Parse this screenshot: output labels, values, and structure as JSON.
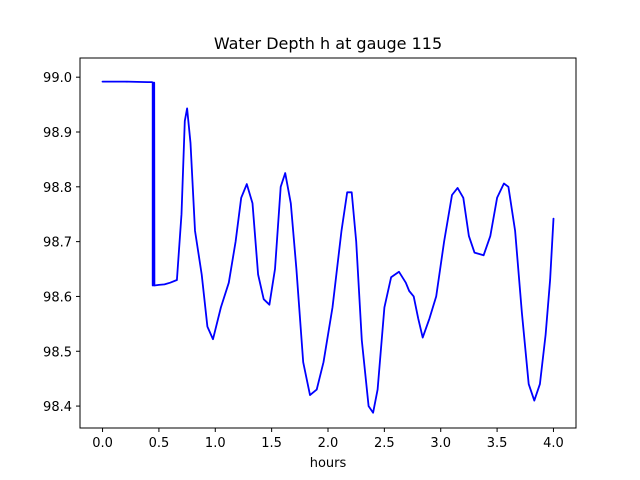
{
  "chart_data": {
    "type": "line",
    "title": "Water Depth h at gauge 115",
    "xlabel": "hours",
    "ylabel": "",
    "xlim": [
      -0.2,
      4.2
    ],
    "ylim": [
      98.36,
      99.035
    ],
    "x_ticks": [
      0.0,
      0.5,
      1.0,
      1.5,
      2.0,
      2.5,
      3.0,
      3.5,
      4.0
    ],
    "x_tick_labels": [
      "0.0",
      "0.5",
      "1.0",
      "1.5",
      "2.0",
      "2.5",
      "3.0",
      "3.5",
      "4.0"
    ],
    "y_ticks": [
      98.4,
      98.5,
      98.6,
      98.7,
      98.8,
      98.9,
      99.0
    ],
    "y_tick_labels": [
      "98.4",
      "98.5",
      "98.6",
      "98.7",
      "98.8",
      "98.9",
      "99.0"
    ],
    "grid": false,
    "legend": "none",
    "series": [
      {
        "color": "#0000ff",
        "points": [
          [
            0.0,
            98.992
          ],
          [
            0.2,
            98.992
          ],
          [
            0.4,
            98.991
          ],
          [
            0.44,
            98.991
          ],
          [
            0.445,
            98.99
          ],
          [
            0.445,
            98.62
          ],
          [
            0.452,
            98.99
          ],
          [
            0.455,
            98.62
          ],
          [
            0.458,
            98.99
          ],
          [
            0.46,
            98.62
          ],
          [
            0.5,
            98.621
          ],
          [
            0.55,
            98.622
          ],
          [
            0.6,
            98.625
          ],
          [
            0.66,
            98.63
          ],
          [
            0.7,
            98.75
          ],
          [
            0.73,
            98.92
          ],
          [
            0.75,
            98.943
          ],
          [
            0.78,
            98.88
          ],
          [
            0.82,
            98.72
          ],
          [
            0.88,
            98.64
          ],
          [
            0.93,
            98.545
          ],
          [
            0.98,
            98.522
          ],
          [
            1.05,
            98.58
          ],
          [
            1.12,
            98.625
          ],
          [
            1.18,
            98.7
          ],
          [
            1.23,
            98.78
          ],
          [
            1.28,
            98.805
          ],
          [
            1.33,
            98.77
          ],
          [
            1.38,
            98.64
          ],
          [
            1.43,
            98.595
          ],
          [
            1.48,
            98.585
          ],
          [
            1.53,
            98.65
          ],
          [
            1.58,
            98.8
          ],
          [
            1.62,
            98.825
          ],
          [
            1.67,
            98.77
          ],
          [
            1.72,
            98.65
          ],
          [
            1.78,
            98.48
          ],
          [
            1.84,
            98.42
          ],
          [
            1.9,
            98.43
          ],
          [
            1.96,
            98.48
          ],
          [
            2.04,
            98.58
          ],
          [
            2.12,
            98.72
          ],
          [
            2.17,
            98.79
          ],
          [
            2.21,
            98.79
          ],
          [
            2.25,
            98.7
          ],
          [
            2.3,
            98.52
          ],
          [
            2.36,
            98.4
          ],
          [
            2.4,
            98.388
          ],
          [
            2.44,
            98.43
          ],
          [
            2.5,
            98.58
          ],
          [
            2.56,
            98.635
          ],
          [
            2.63,
            98.645
          ],
          [
            2.69,
            98.625
          ],
          [
            2.72,
            98.61
          ],
          [
            2.76,
            98.6
          ],
          [
            2.8,
            98.56
          ],
          [
            2.84,
            98.525
          ],
          [
            2.9,
            98.56
          ],
          [
            2.96,
            98.6
          ],
          [
            3.03,
            98.7
          ],
          [
            3.1,
            98.785
          ],
          [
            3.15,
            98.798
          ],
          [
            3.2,
            98.78
          ],
          [
            3.25,
            98.71
          ],
          [
            3.3,
            98.68
          ],
          [
            3.38,
            98.675
          ],
          [
            3.44,
            98.71
          ],
          [
            3.5,
            98.78
          ],
          [
            3.56,
            98.806
          ],
          [
            3.6,
            98.8
          ],
          [
            3.66,
            98.72
          ],
          [
            3.72,
            98.57
          ],
          [
            3.78,
            98.44
          ],
          [
            3.83,
            98.41
          ],
          [
            3.88,
            98.44
          ],
          [
            3.93,
            98.53
          ],
          [
            3.97,
            98.63
          ],
          [
            4.0,
            98.742
          ]
        ]
      }
    ]
  }
}
